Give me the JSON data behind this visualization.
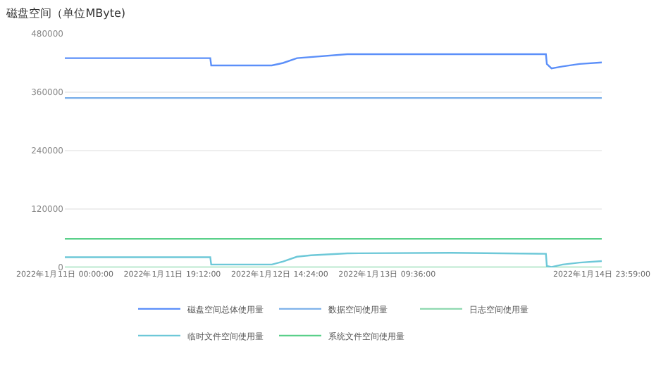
{
  "chart_data": {
    "type": "line",
    "title": "磁盘空间（单位MByte)",
    "xlim": [
      "2022-01-11T00:00",
      "2022-01-14T23:59"
    ],
    "xticks": [
      {
        "value": "2022-01-11T00:00",
        "label": "2022年1月11日 00:00:00"
      },
      {
        "value": "2022-01-11T19:12",
        "label": "2022年1月11日 19:12:00"
      },
      {
        "value": "2022-01-12T14:24",
        "label": "2022年1月12日 14:24:00"
      },
      {
        "value": "2022-01-13T09:36",
        "label": "2022年1月13日 09:36:00"
      },
      {
        "value": "2022-01-14T23:59",
        "label": "2022年1月14日 23:59:00"
      }
    ],
    "ylim": [
      0,
      480000
    ],
    "yticks": [
      0,
      120000,
      240000,
      360000,
      480000
    ],
    "grid": "y",
    "legend": "bottom",
    "marker": "none",
    "line_style": "solid",
    "series": [
      {
        "name": "磁盘空间总体使用量",
        "color": "#5b8ff9",
        "x": [
          "2022-01-11T00:00",
          "2022-01-12T02:00",
          "2022-01-12T02:10",
          "2022-01-12T13:00",
          "2022-01-12T15:00",
          "2022-01-12T17:30",
          "2022-01-13T02:30",
          "2022-01-14T14:00",
          "2022-01-14T14:10",
          "2022-01-14T15:00",
          "2022-01-14T17:00",
          "2022-01-14T20:00",
          "2022-01-14T23:59"
        ],
        "values": [
          430000,
          430000,
          415000,
          415000,
          420000,
          430000,
          438000,
          438000,
          418000,
          409000,
          413000,
          418000,
          421000
        ]
      },
      {
        "name": "数据空间使用量",
        "color": "#7fb2ea",
        "x": [
          "2022-01-11T00:00",
          "2022-01-14T23:59"
        ],
        "values": [
          348000,
          348000
        ]
      },
      {
        "name": "日志空间使用量",
        "color": "#8fd9b0",
        "x": [
          "2022-01-11T00:00",
          "2022-01-14T23:59"
        ],
        "values": [
          0,
          0
        ]
      },
      {
        "name": "临时文件空间使用量",
        "color": "#6dc8d8",
        "x": [
          "2022-01-11T00:00",
          "2022-01-12T02:00",
          "2022-01-12T02:10",
          "2022-01-12T13:00",
          "2022-01-12T15:00",
          "2022-01-12T17:30",
          "2022-01-12T20:00",
          "2022-01-13T02:30",
          "2022-01-13T21:00",
          "2022-01-14T14:00",
          "2022-01-14T14:10",
          "2022-01-14T15:00",
          "2022-01-14T17:00",
          "2022-01-14T20:00",
          "2022-01-14T23:59"
        ],
        "values": [
          21000,
          21000,
          6000,
          6000,
          12000,
          22000,
          25000,
          29000,
          30000,
          28000,
          3000,
          1000,
          6000,
          10000,
          13000
        ]
      },
      {
        "name": "系统文件空间使用量",
        "color": "#5ad08a",
        "x": [
          "2022-01-11T00:00",
          "2022-01-14T23:59"
        ],
        "values": [
          59000,
          59000
        ]
      }
    ]
  }
}
